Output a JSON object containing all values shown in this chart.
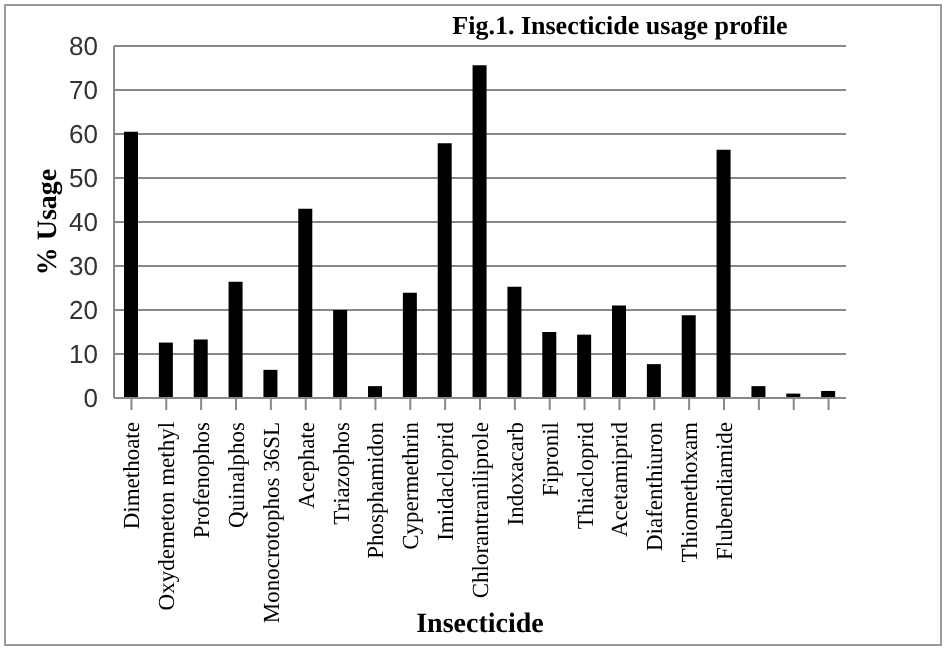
{
  "chart_data": {
    "type": "bar",
    "title": "Fig.1. Insecticide usage profile",
    "xlabel": "Insecticide",
    "ylabel": "% Usage",
    "categories": [
      "Dimethoate",
      "Oxydemeton methyl",
      "Profenophos",
      "Quinalphos",
      "Monocrotophos 36SL",
      "Acephate",
      "Triazophos",
      "Phosphamidon",
      "Cypermethrin",
      "Imidacloprid",
      "Chlorantraniliprole",
      "Indoxacarb",
      "Fipronil",
      "Thiacloprid",
      "Acetamiprid",
      "Diafenthiuron",
      "Thiomethoxam",
      "Flubendiamide",
      null,
      null,
      null
    ],
    "values": [
      60.5,
      12.6,
      13.3,
      26.4,
      6.4,
      43,
      20,
      2.7,
      23.9,
      57.9,
      75.6,
      25.3,
      15,
      14.4,
      21,
      7.7,
      18.8,
      56.4,
      2.7,
      1,
      1.6
    ],
    "color": "#000000",
    "ylim": [
      0,
      80
    ],
    "yticks": [
      0,
      10,
      20,
      30,
      40,
      50,
      60,
      70,
      80
    ],
    "grid": "y"
  }
}
